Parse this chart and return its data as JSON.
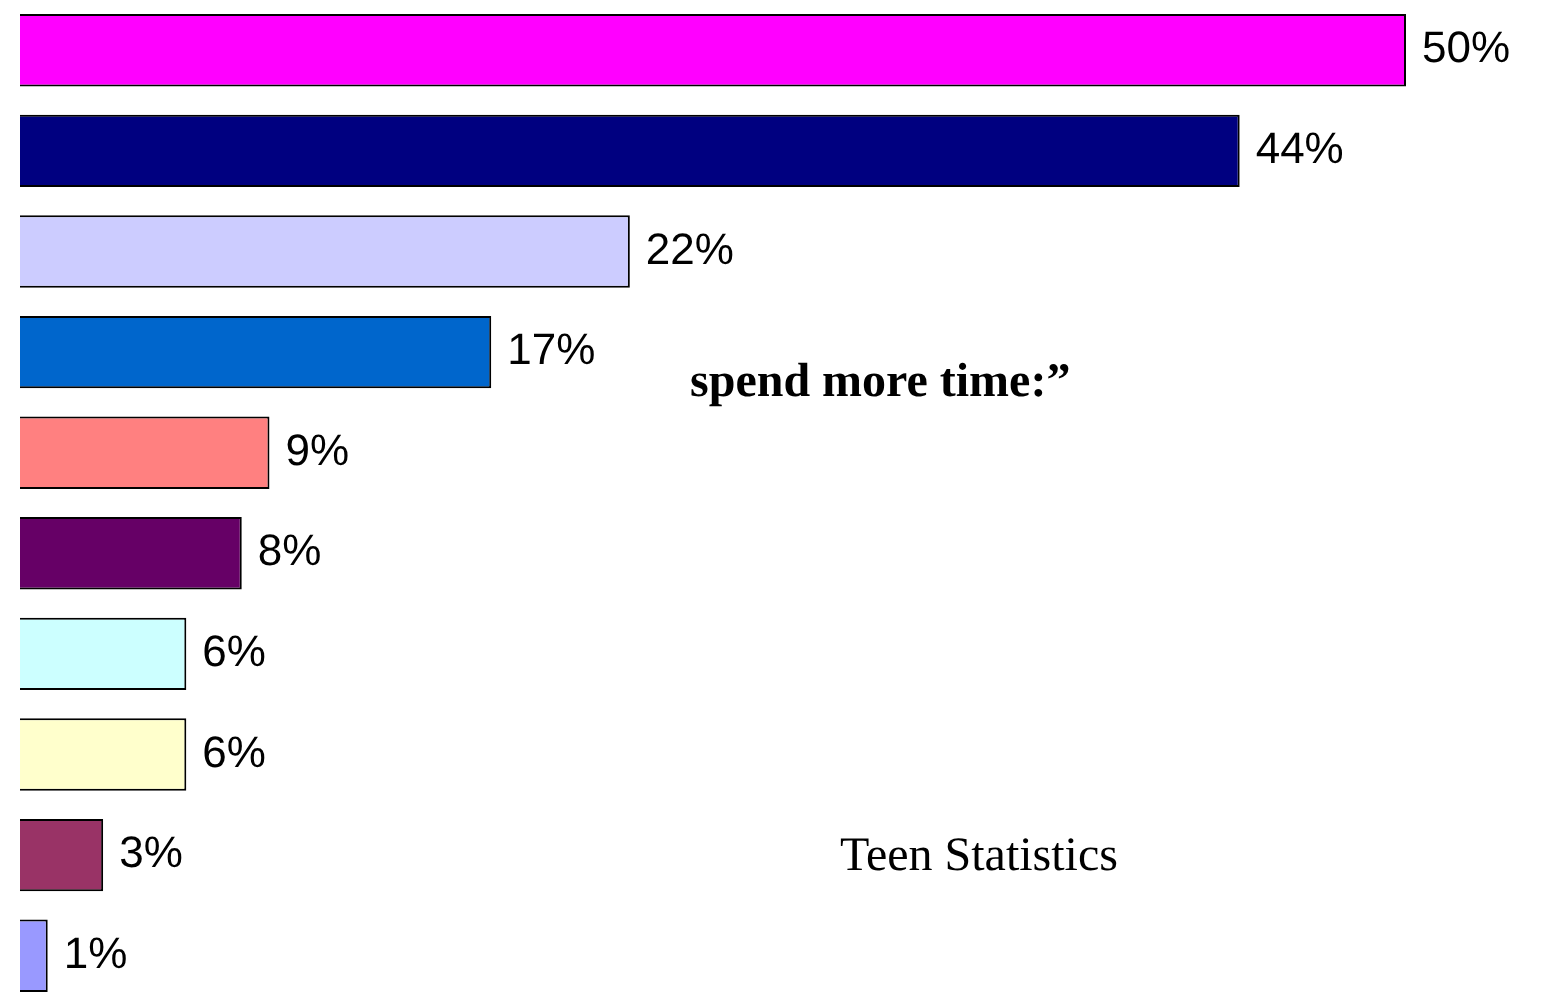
{
  "chart_data": {
    "type": "bar",
    "orientation": "horizontal",
    "categories": [
      null,
      null,
      null,
      null,
      null,
      null,
      null,
      null,
      null,
      null
    ],
    "values": [
      50,
      44,
      22,
      17,
      9,
      8,
      6,
      6,
      3,
      1
    ],
    "colors": [
      "#ff00ff",
      "#000080",
      "#ccccff",
      "#0066cc",
      "#ff8080",
      "#660066",
      "#ccffff",
      "#ffffcc",
      "#993366",
      "#9999ff"
    ],
    "value_labels": [
      "50%",
      "44%",
      "22%",
      "17%",
      "9%",
      "8%",
      "6%",
      "6%",
      "3%",
      "1%"
    ],
    "annotations": [
      "spend more time:”",
      "Teen Statistics"
    ],
    "tick_labels": false
  }
}
